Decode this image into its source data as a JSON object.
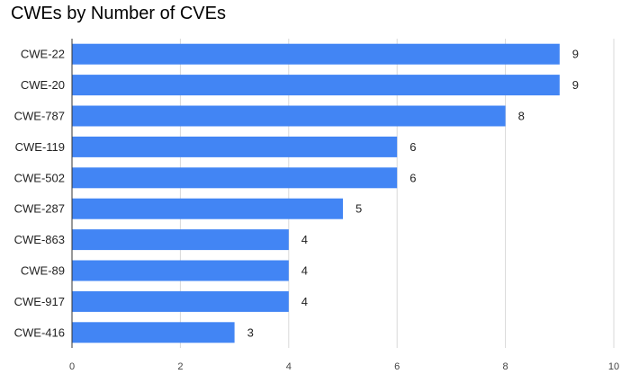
{
  "chart_data": {
    "type": "bar",
    "orientation": "horizontal",
    "title": "CWEs by Number of CVEs",
    "xlabel": "",
    "ylabel": "",
    "categories": [
      "CWE-22",
      "CWE-20",
      "CWE-787",
      "CWE-119",
      "CWE-502",
      "CWE-287",
      "CWE-863",
      "CWE-89",
      "CWE-917",
      "CWE-416"
    ],
    "values": [
      9,
      9,
      8,
      6,
      6,
      5,
      4,
      4,
      4,
      3
    ],
    "xlim": [
      0,
      10
    ],
    "xticks": [
      0,
      2,
      4,
      6,
      8,
      10
    ],
    "grid": "vertical",
    "legend": "none",
    "data_labels": true,
    "colors": {
      "bar": "#4285F4",
      "grid": "#d9d9d9",
      "axis": "#333333"
    }
  }
}
